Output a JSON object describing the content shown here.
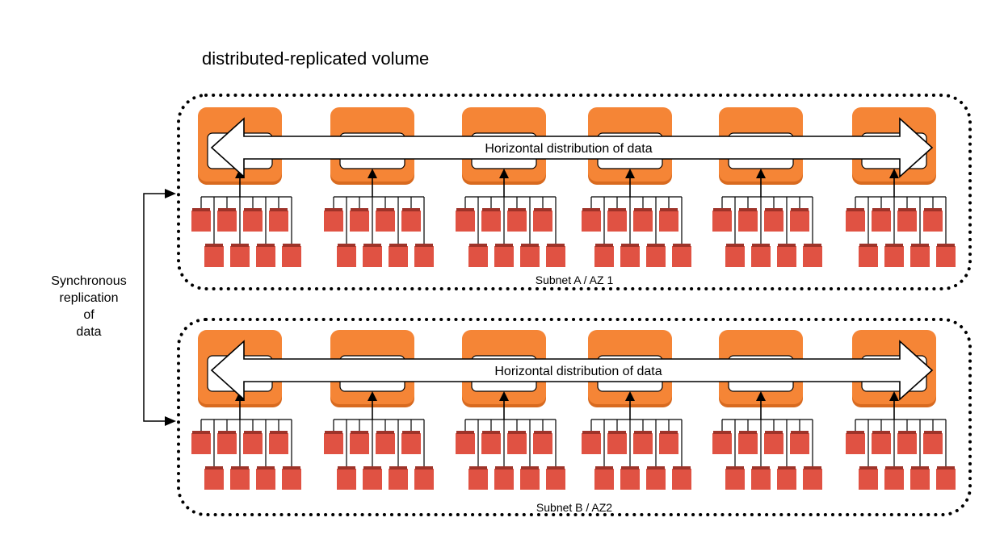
{
  "title": "distributed-replicated volume",
  "sync_label": [
    "Synchronous",
    "replication",
    "of",
    "data"
  ],
  "subnets": [
    {
      "label": "Subnet A / AZ 1",
      "arrow_label": "Horizontal distribution of data"
    },
    {
      "label": "Subnet B / AZ2",
      "arrow_label": "Horizontal distribution of data"
    }
  ],
  "colors": {
    "instance": "#f58536",
    "instance_dark": "#d86a1f",
    "volume": "#e05243",
    "volume_dark": "#9e3329",
    "border": "#000000"
  }
}
